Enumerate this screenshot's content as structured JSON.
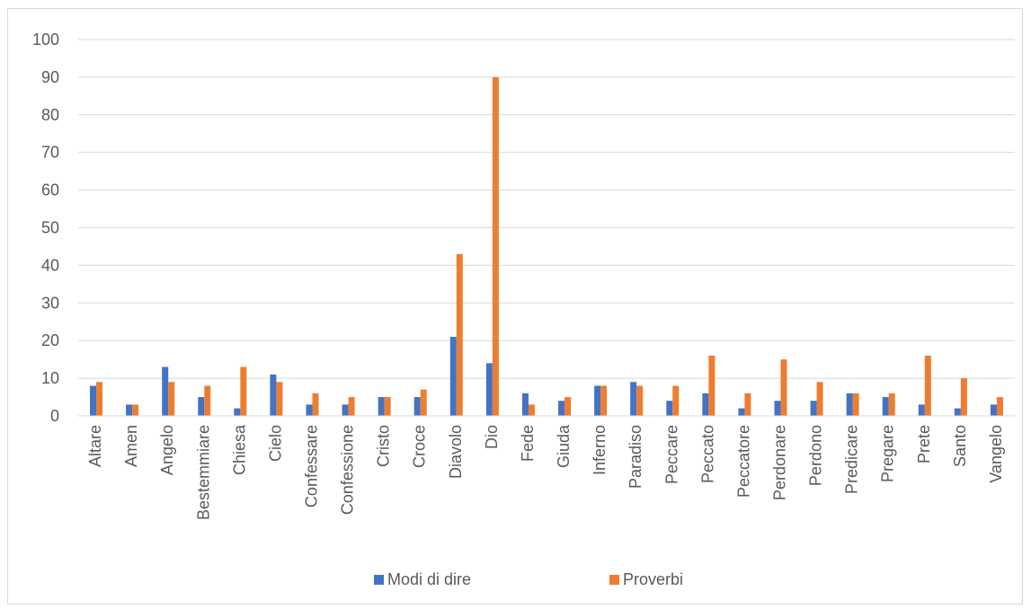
{
  "chart_data": {
    "type": "bar",
    "title": "",
    "xlabel": "",
    "ylabel": "",
    "ylim": [
      0,
      100
    ],
    "yticks": [
      0,
      10,
      20,
      30,
      40,
      50,
      60,
      70,
      80,
      90,
      100
    ],
    "grid": true,
    "legend_position": "bottom",
    "categories": [
      "Altare",
      "Amen",
      "Angelo",
      "Bestemmiare",
      "Chiesa",
      "Cielo",
      "Confessare",
      "Confessione",
      "Cristo",
      "Croce",
      "Diavolo",
      "Dio",
      "Fede",
      "Giuda",
      "Inferno",
      "Paradiso",
      "Peccare",
      "Peccato",
      "Peccatore",
      "Perdonare",
      "Perdono",
      "Predicare",
      "Pregare",
      "Prete",
      "Santo",
      "Vangelo"
    ],
    "series": [
      {
        "name": "Modi di dire",
        "color": "#4472C4",
        "values": [
          8,
          3,
          13,
          5,
          2,
          11,
          3,
          3,
          5,
          5,
          21,
          14,
          6,
          4,
          8,
          9,
          4,
          6,
          2,
          4,
          4,
          6,
          5,
          3,
          2,
          3
        ]
      },
      {
        "name": "Proverbi",
        "color": "#ED7D31",
        "values": [
          9,
          3,
          9,
          8,
          13,
          9,
          6,
          5,
          5,
          7,
          43,
          90,
          3,
          5,
          8,
          8,
          8,
          16,
          6,
          15,
          9,
          6,
          6,
          16,
          10,
          5
        ]
      }
    ]
  }
}
